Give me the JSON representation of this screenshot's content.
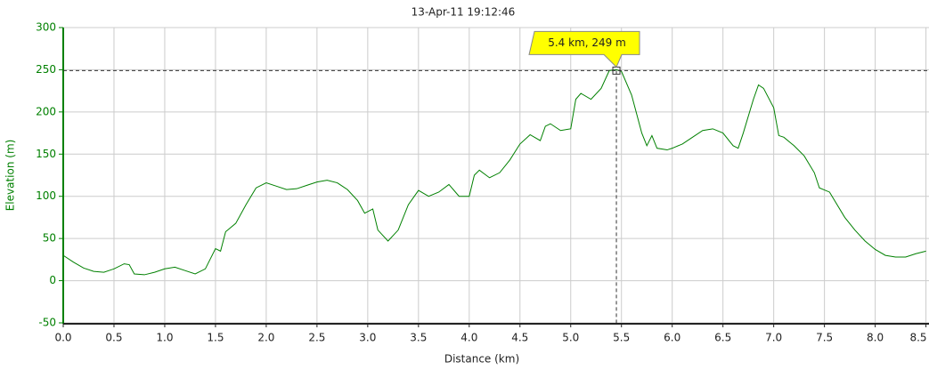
{
  "chart_data": {
    "type": "line",
    "title": "13-Apr-11 19:12:46",
    "x_label": "Distance (km)",
    "y_label": "Elevation (m)",
    "xlim": [
      0,
      8.53
    ],
    "ylim": [
      -50,
      300
    ],
    "xticks": [
      {
        "value": 0,
        "label": "0.0"
      },
      0.5,
      {
        "value": 1,
        "label": "1.0"
      },
      1.5,
      {
        "value": 2,
        "label": "2.0"
      },
      2.5,
      {
        "value": 3,
        "label": "3.0"
      },
      3.5,
      {
        "value": 4,
        "label": "4.0"
      },
      4.5,
      {
        "value": 5,
        "label": "5.0"
      },
      5.5,
      {
        "value": 6,
        "label": "6.0"
      },
      6.5,
      {
        "value": 7,
        "label": "7.0"
      },
      7.5,
      {
        "value": 8,
        "label": "8.0"
      },
      8.5
    ],
    "yticks": [
      -50,
      0,
      50,
      100,
      150,
      200,
      250,
      300
    ],
    "grid": true,
    "series": [
      {
        "color": "#008000",
        "x": [
          0,
          0.1,
          0.2,
          0.3,
          0.4,
          0.5,
          0.6,
          0.65,
          0.7,
          0.8,
          0.9,
          1.0,
          1.1,
          1.2,
          1.3,
          1.4,
          1.5,
          1.55,
          1.6,
          1.7,
          1.8,
          1.9,
          2.0,
          2.1,
          2.2,
          2.3,
          2.4,
          2.5,
          2.6,
          2.7,
          2.8,
          2.9,
          2.97,
          3.05,
          3.1,
          3.2,
          3.3,
          3.4,
          3.5,
          3.6,
          3.7,
          3.8,
          3.9,
          4.0,
          4.05,
          4.1,
          4.2,
          4.3,
          4.4,
          4.5,
          4.6,
          4.7,
          4.75,
          4.8,
          4.9,
          5.0,
          5.05,
          5.1,
          5.2,
          5.3,
          5.38,
          5.45,
          5.5,
          5.6,
          5.7,
          5.75,
          5.8,
          5.85,
          5.95,
          6.0,
          6.1,
          6.2,
          6.3,
          6.4,
          6.5,
          6.6,
          6.65,
          6.7,
          6.8,
          6.85,
          6.9,
          7.0,
          7.05,
          7.1,
          7.2,
          7.3,
          7.4,
          7.45,
          7.55,
          7.6,
          7.7,
          7.8,
          7.9,
          8.0,
          8.1,
          8.2,
          8.3,
          8.4,
          8.5
        ],
        "values": [
          30,
          22,
          15,
          11,
          10,
          14,
          20,
          19,
          8,
          7,
          10,
          14,
          16,
          12,
          8,
          14,
          38,
          35,
          58,
          68,
          90,
          110,
          116,
          112,
          108,
          109,
          113,
          117,
          119,
          116,
          108,
          95,
          80,
          85,
          60,
          47,
          60,
          90,
          107,
          100,
          105,
          114,
          100,
          100,
          125,
          131,
          122,
          128,
          143,
          162,
          173,
          166,
          183,
          186,
          178,
          180,
          215,
          222,
          215,
          228,
          249,
          250,
          248,
          220,
          175,
          160,
          172,
          157,
          155,
          157,
          162,
          170,
          178,
          180,
          175,
          160,
          157,
          175,
          215,
          232,
          228,
          205,
          172,
          170,
          160,
          148,
          128,
          110,
          105,
          95,
          75,
          60,
          47,
          37,
          30,
          28,
          28,
          32,
          35
        ]
      }
    ],
    "annotations": [
      {
        "text": "5.4 km, 249 m",
        "x": 5.45,
        "y": 249
      }
    ]
  }
}
